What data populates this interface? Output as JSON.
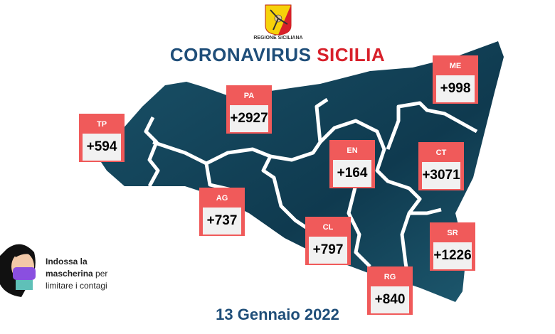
{
  "header": {
    "logo_text": "REGIONE SICILIANA",
    "title_part1": "CORONAVIRUS",
    "title_part2": "SICILIA"
  },
  "colors": {
    "title_blue": "#1f4e79",
    "title_red": "#d8202a",
    "box_red": "#f05a5a",
    "map_dark": "#123d52"
  },
  "provinces": [
    {
      "code": "TP",
      "value": "+594"
    },
    {
      "code": "PA",
      "value": "+2927"
    },
    {
      "code": "ME",
      "value": "+998"
    },
    {
      "code": "EN",
      "value": "+164"
    },
    {
      "code": "CT",
      "value": "+3071"
    },
    {
      "code": "AG",
      "value": "+737"
    },
    {
      "code": "CL",
      "value": "+797"
    },
    {
      "code": "SR",
      "value": "+1226"
    },
    {
      "code": "RG",
      "value": "+840"
    }
  ],
  "mask_message": {
    "line1": "Indossa la",
    "line2_bold": "mascherina",
    "line2_rest": " per",
    "line3": "limitare i contagi"
  },
  "date": "13 Gennaio 2022"
}
